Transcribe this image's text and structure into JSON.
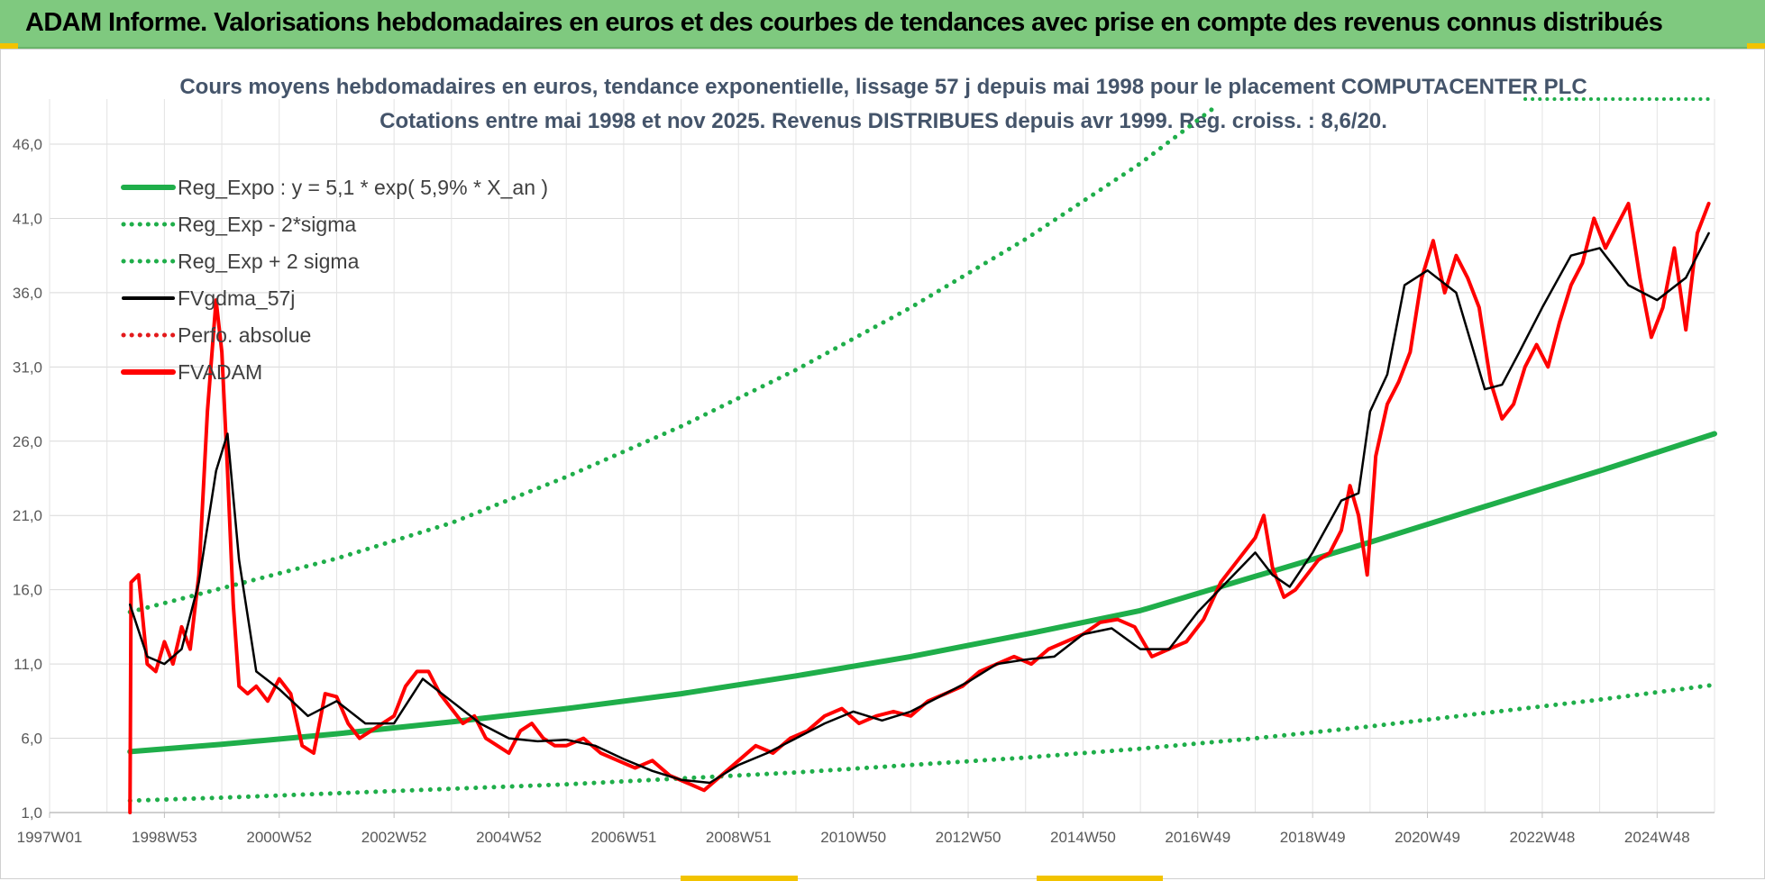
{
  "header": {
    "title": "ADAM Informe. Valorisations hebdomadaires en euros et des courbes de tendances avec prise en compte des revenus connus distribués"
  },
  "chart_data": {
    "type": "line",
    "subtitle_line1": "Cours moyens hebdomadaires en euros, tendance exponentielle, lissage 57 j depuis mai 1998 pour le placement COMPUTACENTER PLC",
    "subtitle_line2": "Cotations entre mai 1998 et nov 2025. Revenus DISTRIBUES depuis avr 1999. Reg. croiss. : 8,6/20.",
    "y_ticks": [
      "1,0",
      "6,0",
      "11,0",
      "16,0",
      "21,0",
      "26,0",
      "31,0",
      "36,0",
      "41,0",
      "46,0"
    ],
    "x_ticks": [
      "1997W01",
      "1998W53",
      "2000W52",
      "2002W52",
      "2004W52",
      "2006W51",
      "2008W51",
      "2010W50",
      "2012W50",
      "2014W50",
      "2016W49",
      "2018W49",
      "2020W49",
      "2022W48",
      "2024W48"
    ],
    "x_range_years": [
      1997.0,
      2026.0
    ],
    "ylim": [
      1,
      46
    ],
    "grid": true,
    "legend_position": "top-left",
    "legend": [
      {
        "key": "reg",
        "label": "Reg_Expo : y = 5,1 * exp( 5,9% *  X_an )",
        "color": "#1fae4a",
        "style": "solid-thick"
      },
      {
        "key": "low",
        "label": "Reg_Exp - 2*sigma",
        "color": "#1fae4a",
        "style": "dotted"
      },
      {
        "key": "high",
        "label": "Reg_Exp + 2 sigma",
        "color": "#1fae4a",
        "style": "dotted"
      },
      {
        "key": "smooth",
        "label": "FVgdma_57j",
        "color": "#000000",
        "style": "solid"
      },
      {
        "key": "perf",
        "label": "Perfo. absolue",
        "color": "#e31a1c",
        "style": "dotted"
      },
      {
        "key": "fv",
        "label": "FVADAM",
        "color": "#ff0000",
        "style": "solid-thick"
      }
    ],
    "series": [
      {
        "key": "reg",
        "name": "Reg_Expo : y = 5,1 * exp( 5,9% *  X_an )",
        "x": [
          1998.4,
          2000,
          2002,
          2004,
          2006,
          2008,
          2010,
          2012,
          2014,
          2016,
          2018,
          2020,
          2022,
          2024,
          2026
        ],
        "y": [
          5.1,
          5.6,
          6.3,
          7.1,
          8.0,
          9.0,
          10.2,
          11.5,
          13.0,
          14.6,
          16.9,
          19.2,
          21.6,
          24.0,
          26.5
        ]
      },
      {
        "key": "low",
        "name": "Reg_Exp - 2*sigma",
        "x": [
          1998.4,
          2000,
          2002,
          2004,
          2006,
          2008,
          2010,
          2012,
          2014,
          2016,
          2018,
          2020,
          2022,
          2024,
          2026
        ],
        "y": [
          1.8,
          2.0,
          2.3,
          2.6,
          2.9,
          3.3,
          3.7,
          4.2,
          4.7,
          5.3,
          6.0,
          6.8,
          7.7,
          8.6,
          9.6
        ]
      },
      {
        "key": "high",
        "name": "Reg_Exp + 2 sigma",
        "x": [
          1998.4,
          2000,
          2002,
          2004,
          2006,
          2008,
          2010,
          2012,
          2014,
          2016,
          2017.3
        ],
        "y": [
          14.5,
          16.1,
          18.1,
          20.5,
          23.6,
          27.0,
          30.8,
          35.0,
          39.6,
          44.7,
          48.5
        ]
      },
      {
        "key": "smooth",
        "name": "FVgdma_57j",
        "x": [
          1998.4,
          1998.7,
          1999.0,
          1999.3,
          1999.6,
          1999.9,
          2000.1,
          2000.3,
          2000.6,
          2001.0,
          2001.5,
          2002.0,
          2002.5,
          2003.0,
          2003.5,
          2004.0,
          2004.5,
          2005.0,
          2005.5,
          2006.0,
          2006.5,
          2007.0,
          2007.5,
          2008.0,
          2008.5,
          2009.0,
          2009.5,
          2010.0,
          2010.5,
          2011.0,
          2011.5,
          2012.0,
          2012.5,
          2013.0,
          2013.5,
          2014.0,
          2014.5,
          2015.0,
          2015.5,
          2016.0,
          2016.5,
          2017.0,
          2017.5,
          2018.0,
          2018.3,
          2018.6,
          2019.0,
          2019.5,
          2019.8,
          2020.0,
          2020.3,
          2020.6,
          2021.0,
          2021.5,
          2022.0,
          2022.3,
          2022.6,
          2023.0,
          2023.5,
          2024.0,
          2024.5,
          2025.0,
          2025.5,
          2025.9
        ],
        "y": [
          15.0,
          11.5,
          11.0,
          12.0,
          16.5,
          24.0,
          26.5,
          18.0,
          10.5,
          9.3,
          7.5,
          8.5,
          7.0,
          7.0,
          10.0,
          8.5,
          7.0,
          6.0,
          5.8,
          5.9,
          5.5,
          4.6,
          3.8,
          3.2,
          3.0,
          4.2,
          5.0,
          6.0,
          7.0,
          7.8,
          7.2,
          7.8,
          8.8,
          9.8,
          11.0,
          11.3,
          11.5,
          13.0,
          13.4,
          12.0,
          12.0,
          14.5,
          16.5,
          18.5,
          17.0,
          16.2,
          18.5,
          22.0,
          22.5,
          28.0,
          30.5,
          36.5,
          37.5,
          36.0,
          29.5,
          29.8,
          32.0,
          35.0,
          38.5,
          39.0,
          36.5,
          35.5,
          37.0,
          40.0
        ]
      },
      {
        "key": "fv",
        "name": "FVADAM",
        "x": [
          1998.4,
          1998.42,
          1998.55,
          1998.7,
          1998.85,
          1999.0,
          1999.15,
          1999.3,
          1999.45,
          1999.6,
          1999.75,
          1999.9,
          2000.0,
          2000.1,
          2000.2,
          2000.3,
          2000.45,
          2000.6,
          2000.8,
          2001.0,
          2001.2,
          2001.4,
          2001.6,
          2001.8,
          2002.0,
          2002.2,
          2002.4,
          2002.6,
          2002.8,
          2003.0,
          2003.2,
          2003.4,
          2003.6,
          2003.8,
          2004.0,
          2004.2,
          2004.4,
          2004.6,
          2004.8,
          2005.0,
          2005.2,
          2005.4,
          2005.6,
          2005.8,
          2006.0,
          2006.3,
          2006.6,
          2006.9,
          2007.2,
          2007.5,
          2007.8,
          2008.1,
          2008.4,
          2008.7,
          2009.0,
          2009.3,
          2009.6,
          2009.9,
          2010.2,
          2010.5,
          2010.8,
          2011.1,
          2011.4,
          2011.7,
          2012.0,
          2012.3,
          2012.6,
          2012.9,
          2013.2,
          2013.5,
          2013.8,
          2014.1,
          2014.4,
          2014.7,
          2015.0,
          2015.3,
          2015.6,
          2015.9,
          2016.2,
          2016.5,
          2016.8,
          2017.1,
          2017.4,
          2017.7,
          2018.0,
          2018.15,
          2018.3,
          2018.5,
          2018.7,
          2018.9,
          2019.1,
          2019.3,
          2019.5,
          2019.65,
          2019.8,
          2019.95,
          2020.1,
          2020.3,
          2020.5,
          2020.7,
          2020.9,
          2021.1,
          2021.3,
          2021.5,
          2021.7,
          2021.9,
          2022.1,
          2022.3,
          2022.5,
          2022.7,
          2022.9,
          2023.1,
          2023.3,
          2023.5,
          2023.7,
          2023.9,
          2024.1,
          2024.3,
          2024.5,
          2024.7,
          2024.9,
          2025.1,
          2025.3,
          2025.5,
          2025.7,
          2025.9
        ],
        "y": [
          1.0,
          16.5,
          17.0,
          11.0,
          10.5,
          12.5,
          11.0,
          13.5,
          12.0,
          17.0,
          28.0,
          35.5,
          32.0,
          24.0,
          15.0,
          9.5,
          9.0,
          9.5,
          8.5,
          10.0,
          9.0,
          5.5,
          5.0,
          9.0,
          8.8,
          7.0,
          6.0,
          6.5,
          7.0,
          7.5,
          9.5,
          10.5,
          10.5,
          9.0,
          8.0,
          7.0,
          7.5,
          6.0,
          5.5,
          5.0,
          6.5,
          7.0,
          6.0,
          5.5,
          5.5,
          6.0,
          5.0,
          4.5,
          4.0,
          4.5,
          3.5,
          3.0,
          2.5,
          3.5,
          4.5,
          5.5,
          5.0,
          6.0,
          6.5,
          7.5,
          8.0,
          7.0,
          7.5,
          7.8,
          7.5,
          8.5,
          9.0,
          9.5,
          10.5,
          11.0,
          11.5,
          11.0,
          12.0,
          12.5,
          13.0,
          13.8,
          14.0,
          13.5,
          11.5,
          12.0,
          12.5,
          14.0,
          16.5,
          18.0,
          19.5,
          21.0,
          17.5,
          15.5,
          16.0,
          17.0,
          18.0,
          18.5,
          20.0,
          23.0,
          21.0,
          17.0,
          25.0,
          28.5,
          30.0,
          32.0,
          37.0,
          39.5,
          36.0,
          38.5,
          37.0,
          35.0,
          30.0,
          27.5,
          28.5,
          31.0,
          32.5,
          31.0,
          34.0,
          36.5,
          38.0,
          41.0,
          39.0,
          40.5,
          42.0,
          37.0,
          33.0,
          35.0,
          39.0,
          33.5,
          40.0,
          42.0
        ]
      }
    ]
  }
}
